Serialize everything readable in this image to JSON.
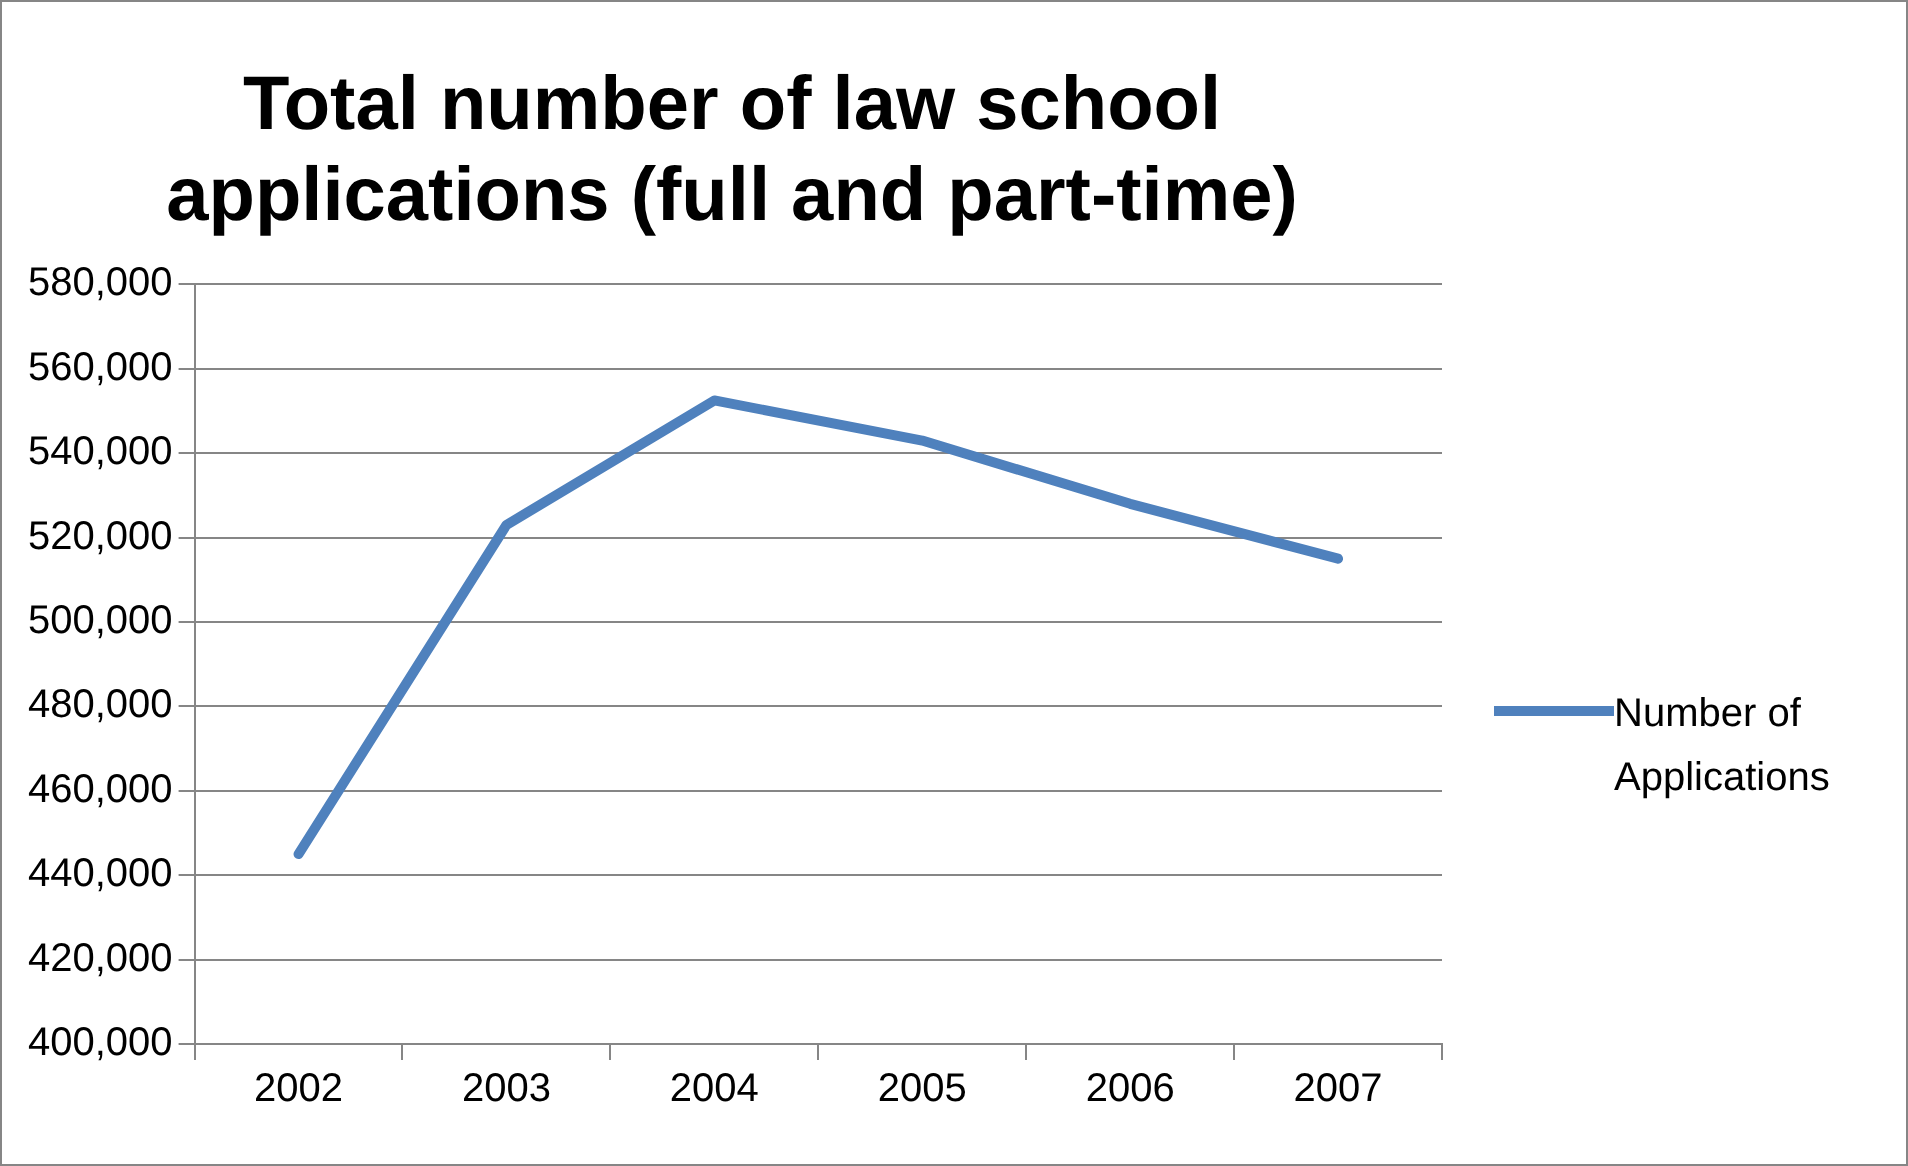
{
  "chart_data": {
    "type": "line",
    "title": "Total number of law school applications (full and part-time)",
    "categories": [
      "2002",
      "2003",
      "2004",
      "2005",
      "2006",
      "2007"
    ],
    "series": [
      {
        "name": "Number of Applications",
        "color": "#4f81bd",
        "values": [
          445000,
          523000,
          552500,
          543000,
          528000,
          515000
        ]
      }
    ],
    "ylim": [
      400000,
      580000
    ],
    "yticks": [
      {
        "value": 400000,
        "label": "400,000"
      },
      {
        "value": 420000,
        "label": "420,000"
      },
      {
        "value": 440000,
        "label": "440,000"
      },
      {
        "value": 460000,
        "label": "460,000"
      },
      {
        "value": 480000,
        "label": "480,000"
      },
      {
        "value": 500000,
        "label": "500,000"
      },
      {
        "value": 520000,
        "label": "520,000"
      },
      {
        "value": 540000,
        "label": "540,000"
      },
      {
        "value": 560000,
        "label": "560,000"
      },
      {
        "value": 580000,
        "label": "580,000"
      }
    ],
    "grid": "y",
    "legend": "right",
    "marker": "none",
    "line_style": "solid"
  }
}
